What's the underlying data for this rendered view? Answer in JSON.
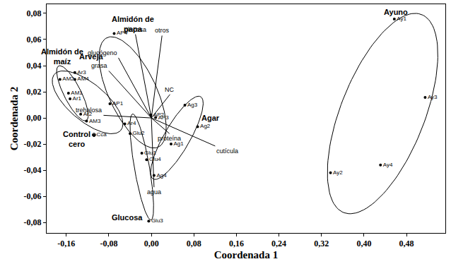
{
  "chart_data": {
    "type": "scatter",
    "x_label": "Coordenada 1",
    "y_label": "Coordenada 2",
    "xlim": [
      -0.197,
      0.553
    ],
    "ylim": [
      -0.088,
      0.087
    ],
    "xticks": [
      {
        "value": -0.16,
        "label": "-0,16"
      },
      {
        "value": -0.08,
        "label": "-0,08"
      },
      {
        "value": 0,
        "label": "0,00"
      },
      {
        "value": 0.08,
        "label": "0,08"
      },
      {
        "value": 0.16,
        "label": "0,16"
      },
      {
        "value": 0.24,
        "label": "0,24"
      },
      {
        "value": 0.32,
        "label": "0,32"
      },
      {
        "value": 0.4,
        "label": "0,40"
      },
      {
        "value": 0.48,
        "label": "0,48"
      }
    ],
    "yticks": [
      {
        "value": -0.08,
        "label": "-0,08"
      },
      {
        "value": -0.06,
        "label": "-0,06"
      },
      {
        "value": -0.04,
        "label": "-0,04"
      },
      {
        "value": -0.02,
        "label": "-0,02"
      },
      {
        "value": 0,
        "label": "0,00"
      },
      {
        "value": 0.02,
        "label": "0,02"
      },
      {
        "value": 0.04,
        "label": "0,04"
      },
      {
        "value": 0.06,
        "label": "0,06"
      },
      {
        "value": 0.08,
        "label": "0,08"
      }
    ],
    "grid": false,
    "color": "#000000",
    "marker": "circle",
    "series": [
      {
        "name": "Almidón de maíz",
        "labels": [
          "AM1",
          "AM2",
          "AM3",
          "AM4"
        ],
        "x": [
          -0.156,
          -0.172,
          -0.122,
          -0.144
        ],
        "y": [
          0.0189,
          0.0295,
          -0.0024,
          0.0295
        ]
      },
      {
        "name": "Arveja",
        "labels": [
          "Ar1",
          "Ar2",
          "Ar3",
          "Ar4"
        ],
        "x": [
          -0.153,
          -0.133,
          -0.144,
          -0.05
        ],
        "y": [
          0.0146,
          0.0029,
          0.0348,
          -0.0045
        ]
      },
      {
        "name": "Almidón de papa",
        "labels": [
          "AP1",
          "AP2",
          "AP3",
          "AP4"
        ],
        "x": [
          -0.078,
          -0.001,
          0.008,
          -0.07
        ],
        "y": [
          0.0109,
          0.0024,
          0.0003,
          0.0646
        ]
      },
      {
        "name": "Control cero",
        "labels": [
          "Cca"
        ],
        "x": [
          -0.108
        ],
        "y": [
          -0.013
        ]
      },
      {
        "name": "Agar",
        "labels": [
          "Ag1",
          "Ag2",
          "Ag3",
          "Ag4"
        ],
        "x": [
          0.037,
          0.087,
          0.063,
          0.005
        ],
        "y": [
          -0.02,
          -0.0067,
          0.0098,
          -0.044
        ]
      },
      {
        "name": "Glucosa",
        "labels": [
          "Glu1",
          "Glu2",
          "Glu3",
          "Glu4"
        ],
        "x": [
          -0.018,
          -0.04,
          -0.005,
          -0.009
        ],
        "y": [
          -0.027,
          -0.012,
          -0.079,
          -0.032
        ]
      },
      {
        "name": "Ayuno",
        "labels": [
          "Ay1",
          "Ay2",
          "Ay3",
          "Ay4"
        ],
        "x": [
          0.457,
          0.337,
          0.515,
          0.431
        ],
        "y": [
          0.0757,
          -0.042,
          0.0157,
          -0.036
        ]
      }
    ],
    "vectors": [
      {
        "label": "glucosa",
        "x": -0.03,
        "y": 0.064
      },
      {
        "label": "otros",
        "x": 0.02,
        "y": 0.063
      },
      {
        "label": "glucógeno",
        "x": -0.062,
        "y": 0.046
      },
      {
        "label": "grasa",
        "x": -0.08,
        "y": 0.036
      },
      {
        "label": "NC",
        "x": 0.035,
        "y": 0.018
      },
      {
        "label": "trehalosa",
        "x": -0.09,
        "y": 0.002
      },
      {
        "label": "proteína",
        "x": 0.034,
        "y": -0.012
      },
      {
        "label": "cutícula",
        "x": 0.12,
        "y": -0.0215
      },
      {
        "label": "agua",
        "x": 0.005,
        "y": -0.053
      }
    ]
  }
}
